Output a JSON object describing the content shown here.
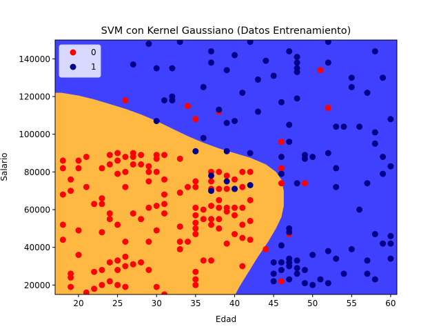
{
  "chart_data": {
    "type": "scatter",
    "title": "SVM con Kernel Gaussiano (Datos Entrenamiento)",
    "xlabel": "Edad",
    "ylabel": "Salario",
    "xlim": [
      17,
      60.8
    ],
    "ylim": [
      15000,
      150000
    ],
    "x_ticks": [
      "20",
      "25",
      "30",
      "35",
      "40",
      "45",
      "50",
      "55",
      "60"
    ],
    "y_ticks": [
      "20000",
      "40000",
      "60000",
      "80000",
      "100000",
      "120000",
      "140000"
    ],
    "legend": {
      "placement": "top-left",
      "entries": [
        "0",
        "1"
      ]
    },
    "regions": {
      "class_0_color": "#FFB841",
      "class_1_color": "#4040FF",
      "boundary": [
        [
          17.8,
          122000
        ],
        [
          20,
          120500
        ],
        [
          22,
          118500
        ],
        [
          24,
          116000
        ],
        [
          26,
          113500
        ],
        [
          28,
          110500
        ],
        [
          30,
          107000
        ],
        [
          32,
          103000
        ],
        [
          34,
          99000
        ],
        [
          36,
          95500
        ],
        [
          38,
          92500
        ],
        [
          40,
          90000
        ],
        [
          42,
          87500
        ],
        [
          44,
          84000
        ],
        [
          45.3,
          80000
        ],
        [
          46,
          76000
        ],
        [
          46.3,
          70000
        ],
        [
          46.3,
          62000
        ],
        [
          46.0,
          56000
        ],
        [
          45.3,
          50000
        ],
        [
          44.3,
          43000
        ],
        [
          43.0,
          35000
        ],
        [
          41.8,
          27000
        ],
        [
          40.6,
          19000
        ],
        [
          40.1,
          15000
        ]
      ]
    },
    "series": [
      {
        "name": "0",
        "color": "#FF0000",
        "points": [
          [
            18,
            86
          ],
          [
            18,
            82
          ],
          [
            18,
            68
          ],
          [
            18,
            52
          ],
          [
            18,
            44
          ],
          [
            19,
            76
          ],
          [
            19,
            70
          ],
          [
            19,
            26
          ],
          [
            19,
            24
          ],
          [
            19,
            19
          ],
          [
            20,
            86
          ],
          [
            20,
            82
          ],
          [
            20,
            49
          ],
          [
            20,
            36
          ],
          [
            21,
            88
          ],
          [
            21,
            72
          ],
          [
            21,
            16
          ],
          [
            22,
            63
          ],
          [
            22,
            27
          ],
          [
            22,
            18
          ],
          [
            23,
            82
          ],
          [
            23,
            66
          ],
          [
            23,
            63
          ],
          [
            23,
            48
          ],
          [
            23,
            28
          ],
          [
            23,
            20
          ],
          [
            24,
            89
          ],
          [
            24,
            84
          ],
          [
            24,
            58
          ],
          [
            24,
            55
          ],
          [
            24,
            32
          ],
          [
            24,
            22
          ],
          [
            25,
            90
          ],
          [
            25,
            86
          ],
          [
            25,
            79
          ],
          [
            25,
            52
          ],
          [
            25,
            33
          ],
          [
            25,
            28
          ],
          [
            25,
            20
          ],
          [
            26,
            88
          ],
          [
            26,
            80
          ],
          [
            26,
            72
          ],
          [
            26,
            43
          ],
          [
            26,
            35
          ],
          [
            26,
            30
          ],
          [
            26,
            19
          ],
          [
            27,
            90
          ],
          [
            27,
            88
          ],
          [
            27,
            84
          ],
          [
            27,
            58
          ],
          [
            27,
            31
          ],
          [
            28,
            89
          ],
          [
            28,
            84
          ],
          [
            28,
            55
          ],
          [
            28,
            32
          ],
          [
            29,
            83
          ],
          [
            29,
            80
          ],
          [
            29,
            75
          ],
          [
            29,
            61
          ],
          [
            29,
            43
          ],
          [
            29,
            28
          ],
          [
            30,
            89
          ],
          [
            30,
            87
          ],
          [
            30,
            80
          ],
          [
            30,
            62
          ],
          [
            30,
            49
          ],
          [
            30,
            19
          ],
          [
            31,
            89
          ],
          [
            31,
            76
          ],
          [
            31,
            68
          ],
          [
            31,
            63
          ],
          [
            31,
            58
          ],
          [
            31,
            15
          ],
          [
            33,
            87
          ],
          [
            33,
            69
          ],
          [
            33,
            51
          ],
          [
            33,
            43
          ],
          [
            33,
            39
          ],
          [
            34,
            72
          ],
          [
            34,
            43
          ],
          [
            35,
            75
          ],
          [
            35,
            72
          ],
          [
            35,
            61
          ],
          [
            35,
            57
          ],
          [
            35,
            53
          ],
          [
            35,
            50
          ],
          [
            35,
            47
          ],
          [
            35,
            27
          ],
          [
            35,
            23
          ],
          [
            35,
            20
          ],
          [
            36,
            60
          ],
          [
            36,
            55
          ],
          [
            36,
            33
          ],
          [
            37,
            80
          ],
          [
            37,
            75
          ],
          [
            37,
            71
          ],
          [
            37,
            62
          ],
          [
            37,
            55
          ],
          [
            37,
            52
          ],
          [
            37,
            33
          ],
          [
            38,
            80
          ],
          [
            38,
            71
          ],
          [
            38,
            65
          ],
          [
            38,
            61
          ],
          [
            38,
            55
          ],
          [
            38,
            50
          ],
          [
            39,
            78
          ],
          [
            39,
            71
          ],
          [
            39,
            61
          ],
          [
            39,
            59
          ],
          [
            39,
            42
          ],
          [
            40,
            76
          ],
          [
            40,
            71
          ],
          [
            40,
            61
          ],
          [
            40,
            57
          ],
          [
            40,
            47
          ],
          [
            41,
            80
          ],
          [
            41,
            72
          ],
          [
            41,
            61
          ],
          [
            41,
            52
          ],
          [
            41,
            45
          ],
          [
            41,
            30
          ],
          [
            42,
            80
          ],
          [
            42,
            65
          ],
          [
            42,
            54
          ],
          [
            42,
            44
          ],
          [
            44,
            39
          ],
          [
            34,
            115
          ],
          [
            35,
            108
          ],
          [
            26,
            118
          ],
          [
            38,
            112
          ],
          [
            46,
            96
          ],
          [
            46,
            82
          ],
          [
            46,
            74
          ],
          [
            46,
            22
          ],
          [
            47,
            47
          ],
          [
            48,
            141
          ],
          [
            51,
            134
          ],
          [
            52,
            114
          ],
          [
            49,
            74
          ],
          [
            59,
            42
          ]
        ]
      },
      {
        "name": "1",
        "color": "#00008B",
        "points": [
          [
            29,
            148
          ],
          [
            27,
            137
          ],
          [
            30,
            135
          ],
          [
            32,
            135
          ],
          [
            32,
            118
          ],
          [
            32,
            120
          ],
          [
            30,
            107
          ],
          [
            31,
            118
          ],
          [
            33,
            149
          ],
          [
            35,
            91
          ],
          [
            36,
            98
          ],
          [
            36,
            125
          ],
          [
            37,
            144
          ],
          [
            37,
            138
          ],
          [
            37,
            70
          ],
          [
            37,
            78
          ],
          [
            38,
            113
          ],
          [
            39,
            134
          ],
          [
            39,
            106
          ],
          [
            39,
            75
          ],
          [
            39,
            91
          ],
          [
            40,
            142
          ],
          [
            40,
            107
          ],
          [
            40,
            71
          ],
          [
            41,
            122
          ],
          [
            42,
            149
          ],
          [
            42,
            90
          ],
          [
            42,
            73
          ],
          [
            43,
            129
          ],
          [
            43,
            112
          ],
          [
            44,
            139
          ],
          [
            45,
            131
          ],
          [
            45,
            32
          ],
          [
            45,
            22
          ],
          [
            45,
            26
          ],
          [
            46,
            117
          ],
          [
            46,
            88
          ],
          [
            46,
            79
          ],
          [
            46,
            41
          ],
          [
            46,
            28
          ],
          [
            46,
            32
          ],
          [
            47,
            144
          ],
          [
            47,
            105
          ],
          [
            47,
            96
          ],
          [
            47,
            50
          ],
          [
            47,
            48
          ],
          [
            47,
            34
          ],
          [
            47,
            32
          ],
          [
            47,
            30
          ],
          [
            47,
            23
          ],
          [
            48,
            141
          ],
          [
            48,
            138
          ],
          [
            48,
            135
          ],
          [
            48,
            133
          ],
          [
            48,
            119
          ],
          [
            48,
            33
          ],
          [
            48,
            29
          ],
          [
            48,
            26
          ],
          [
            48,
            74
          ],
          [
            49,
            87
          ],
          [
            49,
            89
          ],
          [
            49,
            28
          ],
          [
            49,
            21
          ],
          [
            50,
            88
          ],
          [
            50,
            20
          ],
          [
            50,
            36
          ],
          [
            51,
            23
          ],
          [
            52,
            149
          ],
          [
            52,
            138
          ],
          [
            52,
            90
          ],
          [
            52,
            38
          ],
          [
            52,
            21
          ],
          [
            53,
            104
          ],
          [
            53,
            82
          ],
          [
            53,
            72
          ],
          [
            53,
            34
          ],
          [
            54,
            104
          ],
          [
            54,
            26
          ],
          [
            55,
            130
          ],
          [
            55,
            125
          ],
          [
            55,
            39
          ],
          [
            56,
            104
          ],
          [
            56,
            60
          ],
          [
            57,
            122
          ],
          [
            57,
            74
          ],
          [
            57,
            33
          ],
          [
            57,
            26
          ],
          [
            58,
            144
          ],
          [
            58,
            101
          ],
          [
            58,
            95
          ],
          [
            58,
            47
          ],
          [
            58,
            23
          ],
          [
            59,
            130
          ],
          [
            59,
            88
          ],
          [
            59,
            79
          ],
          [
            59,
            42
          ],
          [
            60,
            108
          ],
          [
            60,
            83
          ],
          [
            60,
            46
          ],
          [
            60,
            42
          ],
          [
            60,
            34
          ]
        ]
      }
    ]
  }
}
